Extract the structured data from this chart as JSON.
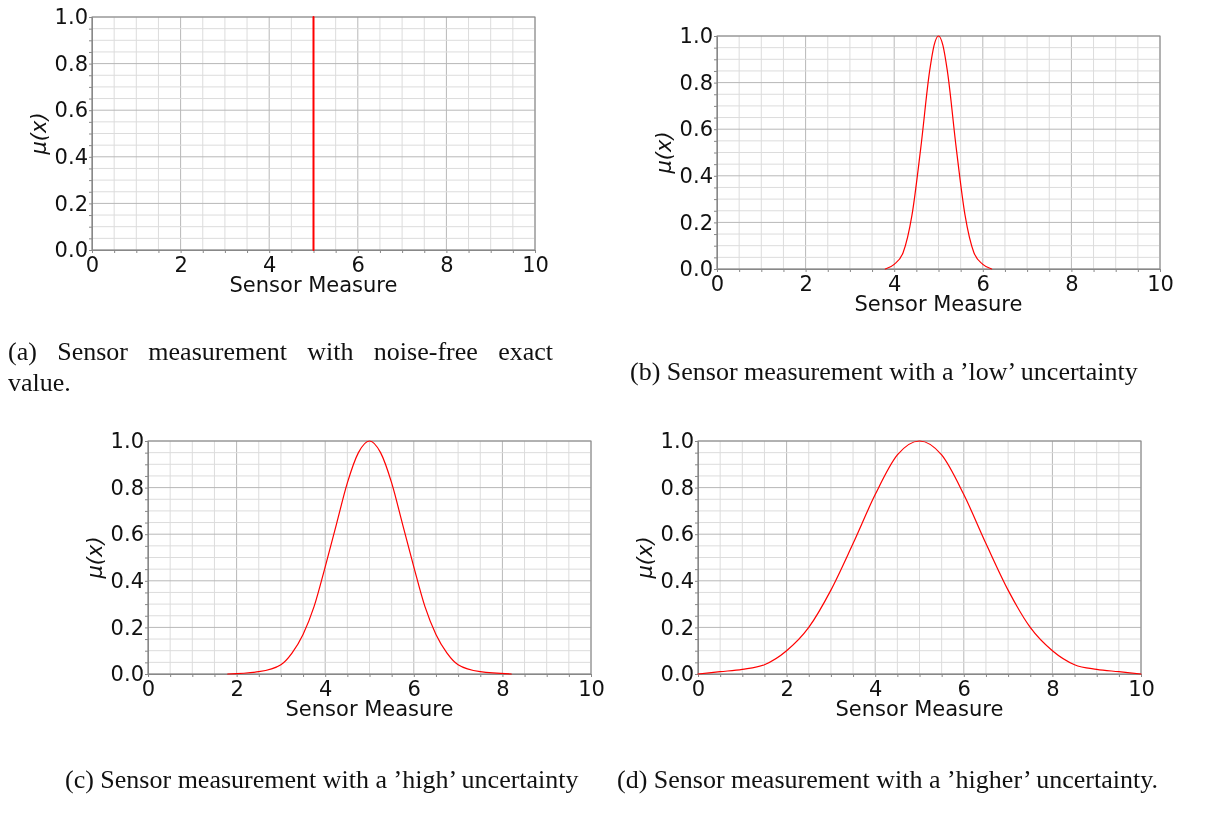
{
  "chart_data": [
    {
      "type": "line",
      "xlabel": "Sensor Measure",
      "ylabel": "μ(x)",
      "xlim": [
        0,
        10
      ],
      "ylim": [
        0,
        1
      ],
      "xticks": [
        0,
        {
          "value": 0.5,
          "label": null
        },
        {
          "value": 1,
          "label": null
        },
        {
          "value": 1.5,
          "label": null
        },
        2,
        {
          "value": 2.5,
          "label": null
        },
        {
          "value": 3,
          "label": null
        },
        {
          "value": 3.5,
          "label": null
        },
        4,
        {
          "value": 4.5,
          "label": null
        },
        {
          "value": 5,
          "label": null
        },
        {
          "value": 5.5,
          "label": null
        },
        6,
        {
          "value": 6.5,
          "label": null
        },
        {
          "value": 7,
          "label": null
        },
        {
          "value": 7.5,
          "label": null
        },
        8,
        {
          "value": 8.5,
          "label": null
        },
        {
          "value": 9,
          "label": null
        },
        {
          "value": 9.5,
          "label": null
        },
        10
      ],
      "yticks": [
        {
          "value": 0,
          "label": "0.0"
        },
        {
          "value": 0.05,
          "label": null
        },
        {
          "value": 0.1,
          "label": null
        },
        {
          "value": 0.15,
          "label": null
        },
        0.2,
        {
          "value": 0.25,
          "label": null
        },
        {
          "value": 0.3,
          "label": null
        },
        {
          "value": 0.35,
          "label": null
        },
        0.4,
        {
          "value": 0.45,
          "label": null
        },
        {
          "value": 0.5,
          "label": null
        },
        {
          "value": 0.55,
          "label": null
        },
        0.6,
        {
          "value": 0.65,
          "label": null
        },
        {
          "value": 0.7,
          "label": null
        },
        {
          "value": 0.75,
          "label": null
        },
        0.8,
        {
          "value": 0.85,
          "label": null
        },
        {
          "value": 0.9,
          "label": null
        },
        {
          "value": 0.95,
          "label": null
        },
        {
          "value": 1,
          "label": "1.0"
        }
      ],
      "grid": true,
      "marker": "none",
      "line_style": "solid",
      "series": [
        {
          "color": "#ff0000",
          "x": [
            5,
            5
          ],
          "values": [
            0,
            1
          ]
        }
      ],
      "annotations": [
        "(a) Sensor measurement with noise-free exact value."
      ]
    },
    {
      "type": "line",
      "xlabel": "Sensor Measure",
      "ylabel": "μ(x)",
      "xlim": [
        0,
        10
      ],
      "ylim": [
        0,
        1
      ],
      "xticks": [
        0,
        {
          "value": 0.5,
          "label": null
        },
        {
          "value": 1,
          "label": null
        },
        {
          "value": 1.5,
          "label": null
        },
        2,
        {
          "value": 2.5,
          "label": null
        },
        {
          "value": 3,
          "label": null
        },
        {
          "value": 3.5,
          "label": null
        },
        4,
        {
          "value": 4.5,
          "label": null
        },
        {
          "value": 5,
          "label": null
        },
        {
          "value": 5.5,
          "label": null
        },
        6,
        {
          "value": 6.5,
          "label": null
        },
        {
          "value": 7,
          "label": null
        },
        {
          "value": 7.5,
          "label": null
        },
        8,
        {
          "value": 8.5,
          "label": null
        },
        {
          "value": 9,
          "label": null
        },
        {
          "value": 9.5,
          "label": null
        },
        10
      ],
      "yticks": [
        {
          "value": 0,
          "label": "0.0"
        },
        {
          "value": 0.05,
          "label": null
        },
        {
          "value": 0.1,
          "label": null
        },
        {
          "value": 0.15,
          "label": null
        },
        0.2,
        {
          "value": 0.25,
          "label": null
        },
        {
          "value": 0.3,
          "label": null
        },
        {
          "value": 0.35,
          "label": null
        },
        0.4,
        {
          "value": 0.45,
          "label": null
        },
        {
          "value": 0.5,
          "label": null
        },
        {
          "value": 0.55,
          "label": null
        },
        0.6,
        {
          "value": 0.65,
          "label": null
        },
        {
          "value": 0.7,
          "label": null
        },
        {
          "value": 0.75,
          "label": null
        },
        0.8,
        {
          "value": 0.85,
          "label": null
        },
        {
          "value": 0.9,
          "label": null
        },
        {
          "value": 0.95,
          "label": null
        },
        {
          "value": 1,
          "label": "1.0"
        }
      ],
      "grid": true,
      "marker": "none",
      "line_style": "solid",
      "series": [
        {
          "color": "#ff0000",
          "x": [
            3.8,
            4,
            4.2,
            4.4,
            4.6,
            4.8,
            4.9,
            5,
            5.1,
            5.2,
            5.4,
            5.6,
            5.8,
            6,
            6.2
          ],
          "values": [
            0,
            0.02,
            0.07,
            0.23,
            0.52,
            0.85,
            0.96,
            1,
            0.96,
            0.85,
            0.52,
            0.23,
            0.07,
            0.02,
            0
          ]
        }
      ],
      "annotations": [
        "(b) Sensor measurement with a ’low’ uncertainty"
      ]
    },
    {
      "type": "line",
      "xlabel": "Sensor Measure",
      "ylabel": "μ(x)",
      "xlim": [
        0,
        10
      ],
      "ylim": [
        0,
        1
      ],
      "xticks": [
        0,
        {
          "value": 0.5,
          "label": null
        },
        {
          "value": 1,
          "label": null
        },
        {
          "value": 1.5,
          "label": null
        },
        2,
        {
          "value": 2.5,
          "label": null
        },
        {
          "value": 3,
          "label": null
        },
        {
          "value": 3.5,
          "label": null
        },
        4,
        {
          "value": 4.5,
          "label": null
        },
        {
          "value": 5,
          "label": null
        },
        {
          "value": 5.5,
          "label": null
        },
        6,
        {
          "value": 6.5,
          "label": null
        },
        {
          "value": 7,
          "label": null
        },
        {
          "value": 7.5,
          "label": null
        },
        8,
        {
          "value": 8.5,
          "label": null
        },
        {
          "value": 9,
          "label": null
        },
        {
          "value": 9.5,
          "label": null
        },
        10
      ],
      "yticks": [
        {
          "value": 0,
          "label": "0.0"
        },
        {
          "value": 0.05,
          "label": null
        },
        {
          "value": 0.1,
          "label": null
        },
        {
          "value": 0.15,
          "label": null
        },
        0.2,
        {
          "value": 0.25,
          "label": null
        },
        {
          "value": 0.3,
          "label": null
        },
        {
          "value": 0.35,
          "label": null
        },
        0.4,
        {
          "value": 0.45,
          "label": null
        },
        {
          "value": 0.5,
          "label": null
        },
        {
          "value": 0.55,
          "label": null
        },
        0.6,
        {
          "value": 0.65,
          "label": null
        },
        {
          "value": 0.7,
          "label": null
        },
        {
          "value": 0.75,
          "label": null
        },
        0.8,
        {
          "value": 0.85,
          "label": null
        },
        {
          "value": 0.9,
          "label": null
        },
        {
          "value": 0.95,
          "label": null
        },
        {
          "value": 1,
          "label": "1.0"
        }
      ],
      "grid": true,
      "marker": "none",
      "line_style": "solid",
      "series": [
        {
          "color": "#ff0000",
          "x": [
            1.8,
            2.5,
            3,
            3.25,
            3.5,
            3.75,
            4,
            4.25,
            4.5,
            4.75,
            5,
            5.25,
            5.5,
            5.75,
            6,
            6.25,
            6.5,
            6.75,
            7,
            7.5,
            8.2
          ],
          "values": [
            0,
            0.01,
            0.04,
            0.09,
            0.17,
            0.29,
            0.46,
            0.64,
            0.82,
            0.95,
            1,
            0.95,
            0.82,
            0.64,
            0.46,
            0.29,
            0.17,
            0.09,
            0.04,
            0.01,
            0
          ]
        }
      ],
      "annotations": [
        "(c) Sensor measurement with a ’high’ uncertainty"
      ]
    },
    {
      "type": "line",
      "xlabel": "Sensor Measure",
      "ylabel": "μ(x)",
      "xlim": [
        0,
        10
      ],
      "ylim": [
        0,
        1
      ],
      "xticks": [
        0,
        {
          "value": 0.5,
          "label": null
        },
        {
          "value": 1,
          "label": null
        },
        {
          "value": 1.5,
          "label": null
        },
        2,
        {
          "value": 2.5,
          "label": null
        },
        {
          "value": 3,
          "label": null
        },
        {
          "value": 3.5,
          "label": null
        },
        4,
        {
          "value": 4.5,
          "label": null
        },
        {
          "value": 5,
          "label": null
        },
        {
          "value": 5.5,
          "label": null
        },
        6,
        {
          "value": 6.5,
          "label": null
        },
        {
          "value": 7,
          "label": null
        },
        {
          "value": 7.5,
          "label": null
        },
        8,
        {
          "value": 8.5,
          "label": null
        },
        {
          "value": 9,
          "label": null
        },
        {
          "value": 9.5,
          "label": null
        },
        10
      ],
      "yticks": [
        {
          "value": 0,
          "label": "0.0"
        },
        {
          "value": 0.05,
          "label": null
        },
        {
          "value": 0.1,
          "label": null
        },
        {
          "value": 0.15,
          "label": null
        },
        0.2,
        {
          "value": 0.25,
          "label": null
        },
        {
          "value": 0.3,
          "label": null
        },
        {
          "value": 0.35,
          "label": null
        },
        0.4,
        {
          "value": 0.45,
          "label": null
        },
        {
          "value": 0.5,
          "label": null
        },
        {
          "value": 0.55,
          "label": null
        },
        0.6,
        {
          "value": 0.65,
          "label": null
        },
        {
          "value": 0.7,
          "label": null
        },
        {
          "value": 0.75,
          "label": null
        },
        0.8,
        {
          "value": 0.85,
          "label": null
        },
        {
          "value": 0.9,
          "label": null
        },
        {
          "value": 0.95,
          "label": null
        },
        {
          "value": 1,
          "label": "1.0"
        }
      ],
      "grid": true,
      "marker": "none",
      "line_style": "solid",
      "series": [
        {
          "color": "#ff0000",
          "x": [
            0,
            0.5,
            1,
            1.5,
            2,
            2.5,
            3,
            3.5,
            4,
            4.5,
            5,
            5.5,
            6,
            6.5,
            7,
            7.5,
            8,
            8.5,
            9,
            9.5,
            10
          ],
          "values": [
            0,
            0.01,
            0.02,
            0.04,
            0.1,
            0.2,
            0.36,
            0.56,
            0.77,
            0.94,
            1,
            0.94,
            0.77,
            0.56,
            0.36,
            0.2,
            0.1,
            0.04,
            0.02,
            0.01,
            0
          ]
        }
      ],
      "annotations": [
        "(d) Sensor measurement with a ’higher’ uncertainty."
      ]
    }
  ]
}
